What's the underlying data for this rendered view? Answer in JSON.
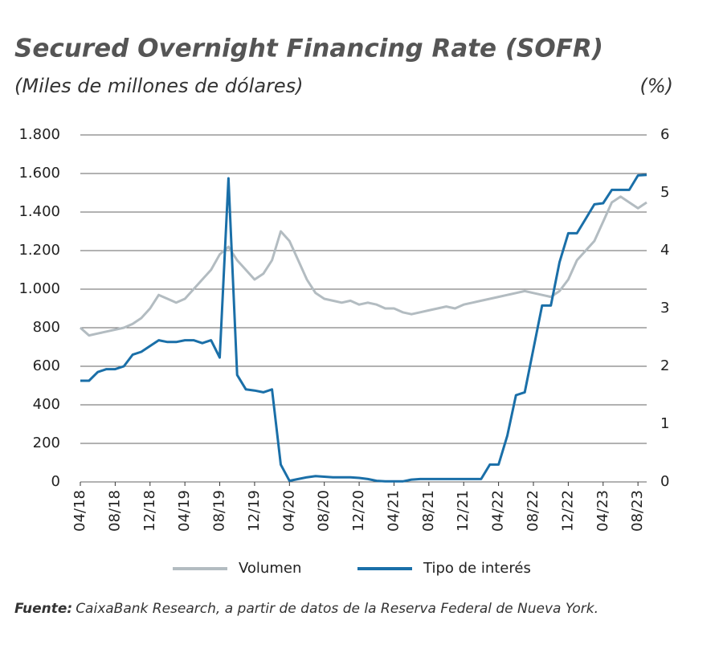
{
  "chart_data": {
    "type": "line",
    "title": "Secured Overnight Financing Rate (SOFR)",
    "y_label": "(Miles de millones de dólares)",
    "y2_label": "(%)",
    "source_label": "Fuente:",
    "source": "CaixaBank Research, a partir de datos de la Reserva Federal de Nueva York.",
    "categories": [
      "04/18",
      null,
      null,
      null,
      "08/18",
      null,
      null,
      null,
      "12/18",
      null,
      null,
      null,
      "04/19",
      null,
      null,
      null,
      "08/19",
      null,
      null,
      null,
      "12/19",
      null,
      null,
      null,
      "04/20",
      null,
      null,
      null,
      "08/20",
      null,
      null,
      null,
      "12/20",
      null,
      null,
      null,
      "04/21",
      null,
      null,
      null,
      "08/21",
      null,
      null,
      null,
      "12/21",
      null,
      null,
      null,
      "04/22",
      null,
      null,
      null,
      "08/22",
      null,
      null,
      null,
      "12/22",
      null,
      null,
      null,
      "04/23",
      null,
      null,
      null,
      "08/23",
      null
    ],
    "series": [
      {
        "name": "Volumen",
        "color": "#b3bcc1",
        "axis": "y",
        "values": [
          800,
          760,
          770,
          780,
          790,
          800,
          820,
          850,
          900,
          970,
          950,
          930,
          950,
          1000,
          1050,
          1100,
          1180,
          1220,
          1150,
          1100,
          1050,
          1080,
          1150,
          1300,
          1250,
          1150,
          1050,
          980,
          950,
          940,
          930,
          940,
          920,
          930,
          920,
          900,
          900,
          880,
          870,
          880,
          890,
          900,
          910,
          900,
          920,
          930,
          940,
          950,
          960,
          970,
          980,
          990,
          980,
          970,
          960,
          990,
          1050,
          1150,
          1200,
          1250,
          1350,
          1450,
          1480,
          1450,
          1420,
          1450
        ]
      },
      {
        "name": "Tipo de interés",
        "color": "#1a6fa8",
        "axis": "y2",
        "values": [
          1.75,
          1.75,
          1.9,
          1.95,
          1.95,
          2.0,
          2.2,
          2.25,
          2.35,
          2.45,
          2.42,
          2.42,
          2.45,
          2.45,
          2.4,
          2.45,
          2.15,
          5.25,
          1.85,
          1.6,
          1.58,
          1.55,
          1.6,
          0.3,
          0.02,
          0.05,
          0.08,
          0.1,
          0.09,
          0.08,
          0.08,
          0.08,
          0.07,
          0.05,
          0.02,
          0.01,
          0.01,
          0.01,
          0.04,
          0.05,
          0.05,
          0.05,
          0.05,
          0.05,
          0.05,
          0.05,
          0.05,
          0.3,
          0.3,
          0.8,
          1.5,
          1.55,
          2.3,
          3.05,
          3.05,
          3.8,
          4.3,
          4.3,
          4.55,
          4.8,
          4.82,
          5.05,
          5.05,
          5.05,
          5.3,
          5.31
        ]
      }
    ],
    "ylim": [
      0,
      1800
    ],
    "yticks": [
      0,
      200,
      400,
      600,
      800,
      {
        "value": 1000,
        "label": "1.000"
      },
      {
        "value": 1200,
        "label": "1.200"
      },
      {
        "value": 1400,
        "label": "1.400"
      },
      {
        "value": 1600,
        "label": "1.600"
      },
      {
        "value": 1800,
        "label": "1.800"
      }
    ],
    "y2lim": [
      0,
      6
    ],
    "y2ticks": [
      0,
      1,
      2,
      3,
      4,
      5,
      6
    ],
    "grid": true,
    "legend": "bottom"
  }
}
